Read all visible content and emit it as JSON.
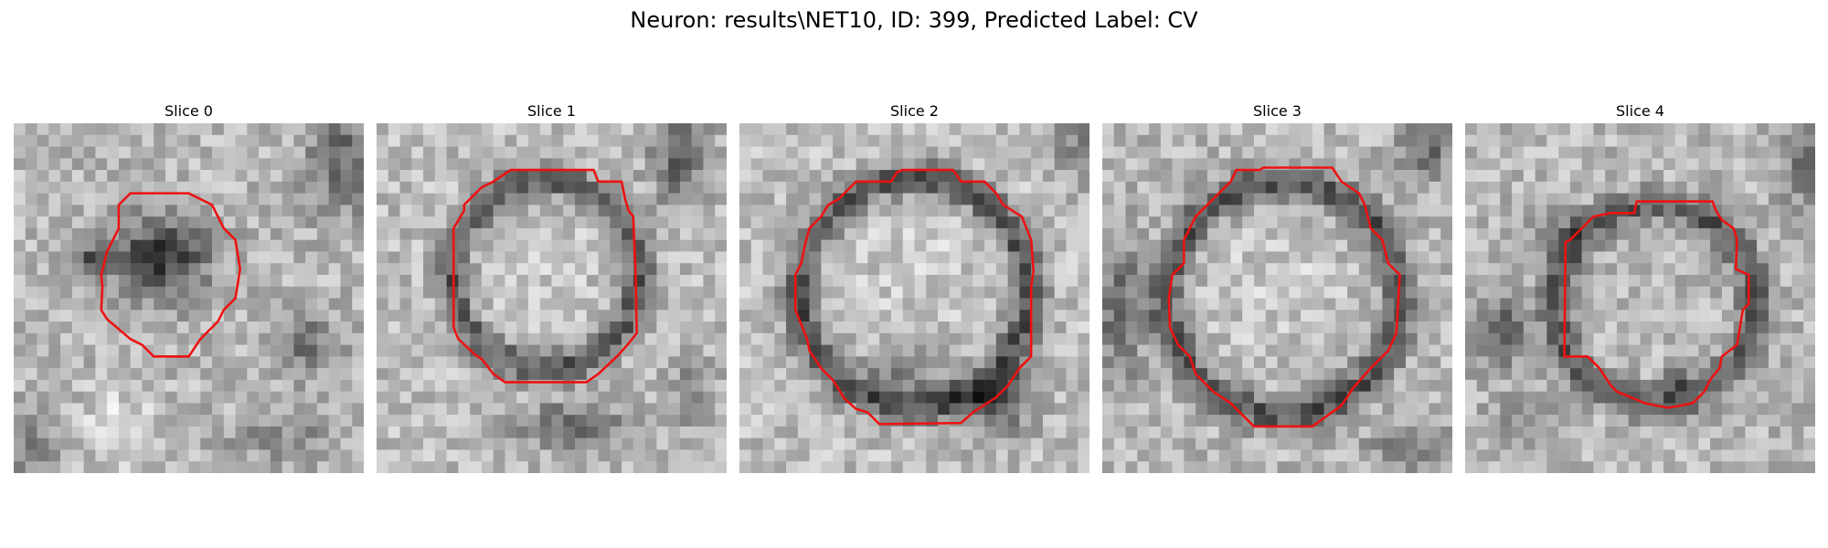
{
  "figure": {
    "title": "Neuron: results\\NET10, ID: 399, Predicted Label: CV"
  },
  "colors": {
    "contour": "#ee1111",
    "background": "#ffffff"
  },
  "slices": [
    {
      "title": "Slice 0"
    },
    {
      "title": "Slice 1"
    },
    {
      "title": "Slice 2"
    },
    {
      "title": "Slice 3"
    },
    {
      "title": "Slice 4"
    }
  ]
}
